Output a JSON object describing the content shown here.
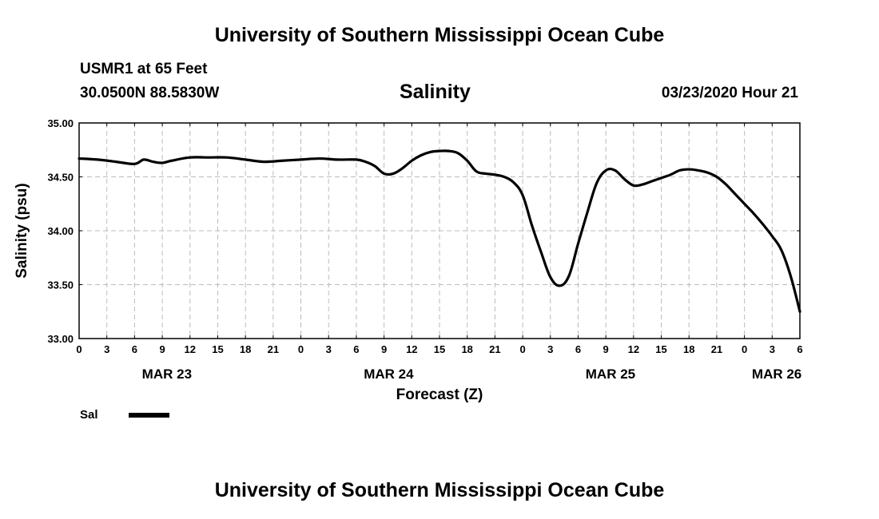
{
  "header": {
    "title": "University of Southern Mississippi Ocean Cube",
    "station": "USMR1 at 65 Feet",
    "coords": "30.0500N 88.5830W",
    "datetime": "03/23/2020 Hour 21"
  },
  "footer": {
    "title": "University of Southern Mississippi Ocean Cube"
  },
  "chart_data": {
    "type": "line",
    "title": "Salinity",
    "xlabel": "Forecast (Z)",
    "ylabel": "Salinity (psu)",
    "xlim": [
      0,
      78
    ],
    "ylim": [
      33.0,
      35.0
    ],
    "grid": true,
    "x_ticks": [
      0,
      3,
      6,
      9,
      12,
      15,
      18,
      21,
      24,
      27,
      30,
      33,
      36,
      39,
      42,
      45,
      48,
      51,
      54,
      57,
      60,
      63,
      66,
      69,
      72,
      75,
      78
    ],
    "x_tick_labels": [
      "0",
      "3",
      "6",
      "9",
      "12",
      "15",
      "18",
      "21",
      "0",
      "3",
      "6",
      "9",
      "12",
      "15",
      "18",
      "21",
      "0",
      "3",
      "6",
      "9",
      "12",
      "15",
      "18",
      "21",
      "0",
      "3",
      "6"
    ],
    "y_ticks": [
      33.0,
      33.5,
      34.0,
      34.5,
      35.0
    ],
    "y_tick_labels": [
      "33.00",
      "33.50",
      "34.00",
      "34.50",
      "35.00"
    ],
    "day_labels": [
      {
        "x": 9.5,
        "text": "MAR 23"
      },
      {
        "x": 33.5,
        "text": "MAR 24"
      },
      {
        "x": 57.5,
        "text": "MAR 25"
      },
      {
        "x": 75.5,
        "text": "MAR 26"
      }
    ],
    "series": [
      {
        "name": "Sal",
        "x": [
          0,
          2,
          4,
          6,
          7,
          8,
          9,
          10,
          12,
          14,
          16,
          18,
          20,
          22,
          24,
          26,
          28,
          30,
          31,
          32,
          33,
          34,
          35,
          36,
          37,
          38,
          39,
          40,
          41,
          42,
          43,
          44,
          45,
          46,
          47,
          48,
          49,
          50,
          51,
          52,
          53,
          54,
          55,
          56,
          57,
          58,
          59,
          60,
          61,
          62,
          63,
          64,
          65,
          66,
          67,
          68,
          69,
          70,
          71,
          72,
          73,
          74,
          75,
          76,
          77,
          78
        ],
        "values": [
          34.67,
          34.66,
          34.64,
          34.62,
          34.66,
          34.64,
          34.63,
          34.65,
          34.68,
          34.68,
          34.68,
          34.66,
          34.64,
          34.65,
          34.66,
          34.67,
          34.66,
          34.66,
          34.64,
          34.6,
          34.53,
          34.53,
          34.58,
          34.65,
          34.7,
          34.73,
          34.74,
          34.74,
          34.72,
          34.65,
          34.55,
          34.53,
          34.52,
          34.5,
          34.45,
          34.33,
          34.05,
          33.8,
          33.57,
          33.49,
          33.58,
          33.88,
          34.17,
          34.44,
          34.56,
          34.56,
          34.48,
          34.42,
          34.43,
          34.46,
          34.49,
          34.52,
          34.56,
          34.57,
          34.56,
          34.54,
          34.5,
          34.43,
          34.34,
          34.25,
          34.16,
          34.06,
          33.95,
          33.82,
          33.58,
          33.25
        ]
      }
    ]
  },
  "legend": {
    "label": "Sal"
  }
}
